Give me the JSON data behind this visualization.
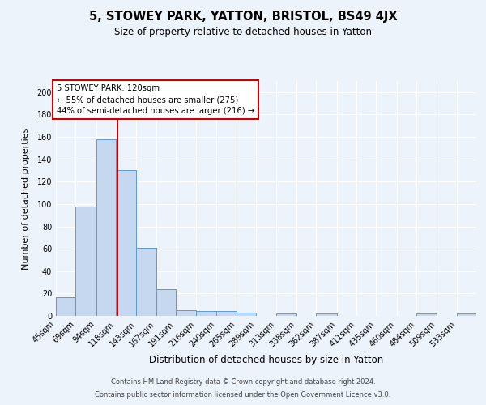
{
  "title1": "5, STOWEY PARK, YATTON, BRISTOL, BS49 4JX",
  "title2": "Size of property relative to detached houses in Yatton",
  "xlabel": "Distribution of detached houses by size in Yatton",
  "ylabel": "Number of detached properties",
  "bin_labels": [
    "45sqm",
    "69sqm",
    "94sqm",
    "118sqm",
    "143sqm",
    "167sqm",
    "191sqm",
    "216sqm",
    "240sqm",
    "265sqm",
    "289sqm",
    "313sqm",
    "338sqm",
    "362sqm",
    "387sqm",
    "411sqm",
    "435sqm",
    "460sqm",
    "484sqm",
    "509sqm",
    "533sqm"
  ],
  "bin_edges": [
    45,
    69,
    94,
    118,
    143,
    167,
    191,
    216,
    240,
    265,
    289,
    313,
    338,
    362,
    387,
    411,
    435,
    460,
    484,
    509,
    533,
    557
  ],
  "counts": [
    17,
    98,
    158,
    130,
    61,
    24,
    5,
    4,
    4,
    3,
    0,
    2,
    0,
    2,
    0,
    0,
    0,
    0,
    2,
    0,
    2
  ],
  "bar_color": "#c5d8f0",
  "bar_edge_color": "#5b9bd5",
  "property_size": 120,
  "vline_color": "#cc0000",
  "annotation_line1": "5 STOWEY PARK: 120sqm",
  "annotation_line2": "← 55% of detached houses are smaller (275)",
  "annotation_line3": "44% of semi-detached houses are larger (216) →",
  "annotation_box_color": "#ffffff",
  "annotation_box_edge": "#cc0000",
  "ylim": [
    0,
    210
  ],
  "yticks": [
    0,
    20,
    40,
    60,
    80,
    100,
    120,
    140,
    160,
    180,
    200
  ],
  "bg_color": "#edf3fb",
  "plot_bg_color": "#edf3fb",
  "footer1": "Contains HM Land Registry data © Crown copyright and database right 2024.",
  "footer2": "Contains public sector information licensed under the Open Government Licence v3.0."
}
